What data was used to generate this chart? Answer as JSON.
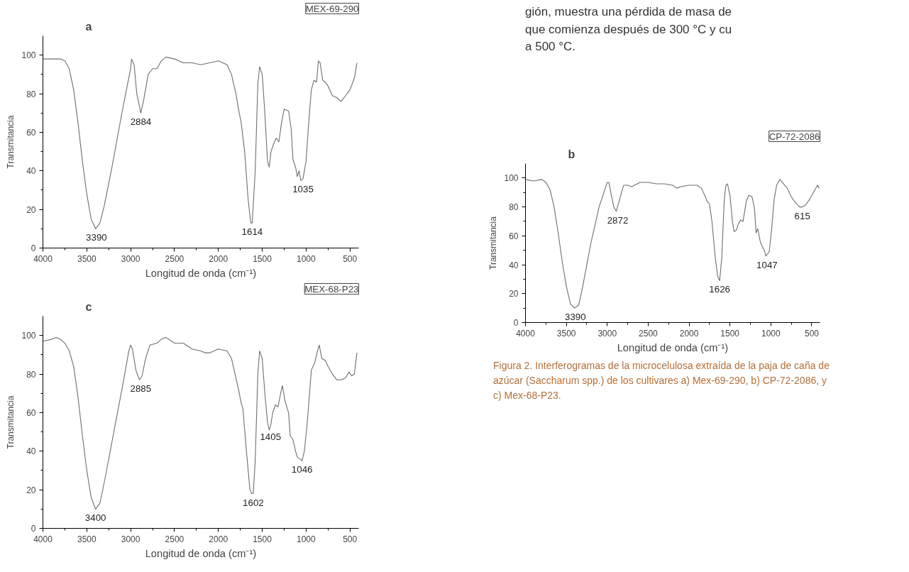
{
  "chart_data": [
    {
      "type": "line",
      "title": "a",
      "subtitle": "MEX-69-290",
      "xlabel": "Longitud de onda (cm⁻¹)",
      "ylabel": "Transmitancia",
      "xlim": [
        4000,
        400
      ],
      "ylim": [
        0,
        110
      ],
      "xticks": [
        4000,
        {
          "value": 3750,
          "label": null
        },
        3500,
        {
          "value": 3250,
          "label": null
        },
        3000,
        {
          "value": 2750,
          "label": null
        },
        2500,
        {
          "value": 2250,
          "label": null
        },
        2000,
        {
          "value": 1750,
          "label": null
        },
        1500,
        {
          "value": 1250,
          "label": null
        },
        1000,
        {
          "value": 750,
          "label": null
        },
        500
      ],
      "yticks": [
        0,
        {
          "value": 10,
          "label": null
        },
        20,
        {
          "value": 30,
          "label": null
        },
        40,
        {
          "value": 50,
          "label": null
        },
        60,
        {
          "value": 70,
          "label": null
        },
        80,
        {
          "value": 90,
          "label": null
        },
        100
      ],
      "grid": false,
      "marker": "none",
      "line_style": "solid",
      "series": [
        {
          "color": "#6e6e6e",
          "x": [
            4000,
            3900,
            3800,
            3750,
            3700,
            3650,
            3600,
            3550,
            3500,
            3450,
            3400,
            3350,
            3300,
            3200,
            3100,
            3000,
            2990,
            2960,
            2930,
            2884,
            2850,
            2800,
            2750,
            2700,
            2650,
            2600,
            2500,
            2400,
            2300,
            2200,
            2100,
            2000,
            1900,
            1850,
            1800,
            1770,
            1740,
            1700,
            1660,
            1630,
            1614,
            1580,
            1550,
            1530,
            1500,
            1470,
            1440,
            1420,
            1400,
            1370,
            1340,
            1310,
            1280,
            1250,
            1200,
            1170,
            1150,
            1120,
            1100,
            1080,
            1060,
            1035,
            1000,
            970,
            940,
            910,
            880,
            860,
            840,
            810,
            780,
            750,
            700,
            650,
            600,
            550,
            500,
            450,
            420
          ],
          "values": [
            98,
            98,
            98,
            97,
            93,
            82,
            65,
            45,
            28,
            15,
            10,
            13,
            22,
            45,
            70,
            93,
            98,
            95,
            80,
            70,
            77,
            90,
            93,
            93,
            97,
            99,
            98,
            96,
            96,
            95,
            96,
            97,
            95,
            90,
            80,
            72,
            65,
            50,
            25,
            13,
            13,
            40,
            85,
            94,
            90,
            70,
            45,
            42,
            50,
            54,
            57,
            55,
            65,
            72,
            71,
            62,
            46,
            42,
            37,
            40,
            35,
            36,
            45,
            65,
            82,
            87,
            86,
            97,
            96,
            87,
            86,
            84,
            79,
            78,
            76,
            79,
            82,
            88,
            96
          ]
        }
      ],
      "annotations": [
        {
          "text": "3390",
          "x": 3390,
          "y": 10
        },
        {
          "text": "2884",
          "x": 2884,
          "y": 70
        },
        {
          "text": "1614",
          "x": 1614,
          "y": 13
        },
        {
          "text": "1035",
          "x": 1035,
          "y": 35
        }
      ]
    },
    {
      "type": "line",
      "title": "b",
      "subtitle": "CP-72-2086",
      "xlabel": "Longitud de onda (cm⁻¹)",
      "ylabel": "Transmitancia",
      "xlim": [
        4000,
        400
      ],
      "ylim": [
        0,
        110
      ],
      "xticks": [
        4000,
        {
          "value": 3750,
          "label": null
        },
        3500,
        {
          "value": 3250,
          "label": null
        },
        3000,
        {
          "value": 2750,
          "label": null
        },
        2500,
        {
          "value": 2250,
          "label": null
        },
        2000,
        {
          "value": 1750,
          "label": null
        },
        1500,
        {
          "value": 1250,
          "label": null
        },
        1000,
        {
          "value": 750,
          "label": null
        },
        500
      ],
      "yticks": [
        0,
        {
          "value": 10,
          "label": null
        },
        20,
        {
          "value": 30,
          "label": null
        },
        40,
        {
          "value": 50,
          "label": null
        },
        60,
        {
          "value": 70,
          "label": null
        },
        80,
        {
          "value": 90,
          "label": null
        },
        100
      ],
      "grid": false,
      "marker": "none",
      "line_style": "solid",
      "series": [
        {
          "color": "#6e6e6e",
          "x": [
            4000,
            3900,
            3800,
            3750,
            3700,
            3650,
            3600,
            3550,
            3500,
            3450,
            3400,
            3350,
            3300,
            3200,
            3100,
            3000,
            2980,
            2950,
            2920,
            2890,
            2850,
            2800,
            2750,
            2700,
            2600,
            2500,
            2400,
            2300,
            2200,
            2150,
            2100,
            2000,
            1900,
            1850,
            1800,
            1780,
            1750,
            1720,
            1680,
            1650,
            1626,
            1600,
            1570,
            1550,
            1530,
            1500,
            1470,
            1450,
            1420,
            1400,
            1370,
            1340,
            1300,
            1270,
            1230,
            1200,
            1180,
            1160,
            1130,
            1100,
            1080,
            1060,
            1047,
            1020,
            990,
            960,
            930,
            890,
            860,
            830,
            800,
            750,
            700,
            650,
            615,
            580,
            530,
            480,
            430,
            410
          ],
          "values": [
            99,
            98,
            99,
            97,
            92,
            80,
            62,
            42,
            25,
            13,
            10,
            12,
            25,
            55,
            80,
            97,
            97,
            88,
            80,
            77,
            85,
            95,
            95,
            94,
            97,
            97,
            96,
            96,
            95,
            93,
            94,
            95,
            95,
            93,
            87,
            84,
            82,
            70,
            45,
            32,
            29,
            45,
            85,
            95,
            96,
            88,
            70,
            63,
            64,
            68,
            71,
            70,
            84,
            88,
            87,
            79,
            62,
            65,
            56,
            52,
            50,
            46,
            47,
            49,
            65,
            85,
            95,
            99,
            97,
            95,
            93,
            87,
            83,
            80,
            80,
            81,
            85,
            90,
            95,
            93
          ]
        }
      ],
      "annotations": [
        {
          "text": "3390",
          "x": 3390,
          "y": 10
        },
        {
          "text": "2872",
          "x": 2872,
          "y": 77
        },
        {
          "text": "1626",
          "x": 1626,
          "y": 29
        },
        {
          "text": "1047",
          "x": 1047,
          "y": 46
        },
        {
          "text": "615",
          "x": 615,
          "y": 80
        },
        "gión, muestra una pérdida de masa de",
        "que comienza después de 300 °C y cu",
        "a 500 °C.",
        "Figura 2. Interferogramas de la microcelulosa extraída de la paja de caña de azúcar (Saccharum spp.) de los cultivares a) Mex-69-290, b) CP-72-2086, y c) Mex-68-P23."
      ]
    },
    {
      "type": "line",
      "title": "c",
      "subtitle": "MEX-68-P23",
      "xlabel": "Longitud de onda (cm⁻¹)",
      "ylabel": "Transmitancia",
      "xlim": [
        4000,
        400
      ],
      "ylim": [
        0,
        110
      ],
      "xticks": [
        4000,
        {
          "value": 3750,
          "label": null
        },
        3500,
        {
          "value": 3250,
          "label": null
        },
        3000,
        {
          "value": 2750,
          "label": null
        },
        2500,
        {
          "value": 2250,
          "label": null
        },
        2000,
        {
          "value": 1750,
          "label": null
        },
        1500,
        {
          "value": 1250,
          "label": null
        },
        1000,
        {
          "value": 750,
          "label": null
        },
        500
      ],
      "yticks": [
        0,
        {
          "value": 10,
          "label": null
        },
        20,
        {
          "value": 30,
          "label": null
        },
        40,
        {
          "value": 50,
          "label": null
        },
        60,
        {
          "value": 70,
          "label": null
        },
        80,
        {
          "value": 90,
          "label": null
        },
        100
      ],
      "grid": false,
      "marker": "none",
      "line_style": "solid",
      "series": [
        {
          "color": "#6e6e6e",
          "x": [
            4000,
            3900,
            3850,
            3800,
            3750,
            3700,
            3650,
            3600,
            3550,
            3500,
            3450,
            3400,
            3350,
            3300,
            3200,
            3100,
            3020,
            3000,
            2980,
            2940,
            2900,
            2870,
            2830,
            2780,
            2700,
            2650,
            2600,
            2500,
            2400,
            2300,
            2200,
            2150,
            2100,
            2000,
            1900,
            1850,
            1800,
            1770,
            1740,
            1720,
            1680,
            1640,
            1620,
            1602,
            1580,
            1550,
            1530,
            1500,
            1470,
            1440,
            1420,
            1405,
            1380,
            1350,
            1320,
            1290,
            1270,
            1240,
            1200,
            1180,
            1150,
            1120,
            1100,
            1070,
            1046,
            1020,
            990,
            960,
            940,
            900,
            870,
            850,
            820,
            780,
            750,
            700,
            650,
            600,
            550,
            510,
            480,
            450,
            420
          ],
          "values": [
            97,
            98,
            99,
            98,
            96,
            92,
            84,
            68,
            48,
            30,
            16,
            10,
            13,
            24,
            48,
            72,
            92,
            95,
            93,
            82,
            77,
            79,
            88,
            95,
            96,
            98,
            99,
            96,
            96,
            93,
            92,
            91,
            91,
            93,
            92,
            88,
            78,
            72,
            65,
            62,
            40,
            20,
            18,
            18,
            35,
            80,
            92,
            88,
            70,
            55,
            51,
            53,
            60,
            64,
            63,
            70,
            74,
            66,
            60,
            48,
            46,
            40,
            37,
            36,
            35,
            40,
            53,
            70,
            82,
            86,
            92,
            95,
            88,
            87,
            84,
            80,
            77,
            77,
            78,
            81,
            79,
            80,
            91
          ]
        }
      ],
      "annotations": [
        {
          "text": "3400",
          "x": 3400,
          "y": 10
        },
        {
          "text": "2885",
          "x": 2885,
          "y": 77
        },
        {
          "text": "1602",
          "x": 1602,
          "y": 18
        },
        {
          "text": "1405",
          "x": 1405,
          "y": 52
        },
        {
          "text": "1046",
          "x": 1046,
          "y": 35
        }
      ]
    }
  ]
}
